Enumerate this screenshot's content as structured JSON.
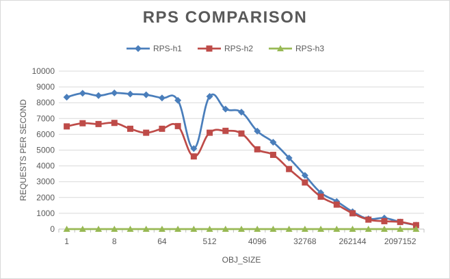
{
  "chart_data": {
    "type": "line",
    "title": "RPS COMPARISON",
    "xlabel": "OBJ_SIZE",
    "ylabel": "REQUESTS PER SECOND",
    "ylim": [
      0,
      10000
    ],
    "yticks": [
      0,
      1000,
      2000,
      3000,
      4000,
      5000,
      6000,
      7000,
      8000,
      9000,
      10000
    ],
    "x": [
      1,
      2,
      4,
      8,
      16,
      32,
      64,
      128,
      256,
      512,
      1024,
      2048,
      4096,
      8192,
      16384,
      32768,
      65536,
      131072,
      262144,
      524288,
      1048576,
      2097152,
      4194304
    ],
    "x_tick_labels": [
      "1",
      "8",
      "64",
      "512",
      "4096",
      "32768",
      "262144",
      "2097152"
    ],
    "grid": "horizontal",
    "legend_position": "top",
    "series": [
      {
        "name": "RPS-h1",
        "color": "#4a7ebb",
        "marker": "diamond",
        "values": [
          8350,
          8600,
          8450,
          8620,
          8550,
          8500,
          8300,
          8150,
          5100,
          8400,
          7600,
          7400,
          6200,
          5500,
          4500,
          3400,
          2300,
          1750,
          1100,
          650,
          700,
          450,
          250
        ]
      },
      {
        "name": "RPS-h2",
        "color": "#be4b48",
        "marker": "square",
        "values": [
          6500,
          6700,
          6650,
          6720,
          6350,
          6100,
          6350,
          6520,
          4600,
          6100,
          6220,
          6050,
          5050,
          4700,
          3800,
          2950,
          2050,
          1550,
          1000,
          600,
          500,
          450,
          250
        ]
      },
      {
        "name": "RPS-h3",
        "color": "#98b954",
        "marker": "triangle",
        "values": [
          0,
          0,
          0,
          0,
          0,
          0,
          0,
          0,
          0,
          0,
          0,
          0,
          0,
          0,
          0,
          0,
          0,
          0,
          0,
          0,
          0,
          0,
          0
        ]
      }
    ]
  }
}
